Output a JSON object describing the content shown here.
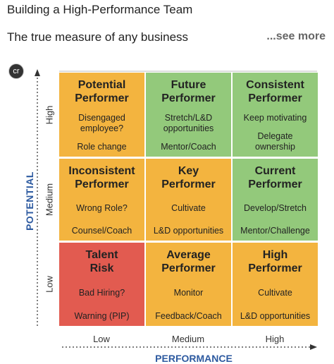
{
  "header": {
    "title": "Building a High-Performance Team",
    "subtitle": "The true measure of any business",
    "more": "...see more"
  },
  "badge": "cr",
  "axis": {
    "y_label": "POTENTIAL",
    "y_levels": [
      "High",
      "Medium",
      "Low"
    ],
    "x_label": "PERFORMANCE",
    "x_levels": [
      "Low",
      "Medium",
      "High"
    ]
  },
  "grid": {
    "rows": [
      {
        "cells": [
          {
            "color": "#f3b43f",
            "title": [
              "Potential",
              "Performer"
            ],
            "notes": [
              [
                "Disengaged",
                "employee?"
              ],
              [
                "Role change"
              ]
            ]
          },
          {
            "color": "#93c97b",
            "title": [
              "Future",
              "Performer"
            ],
            "notes": [
              [
                "Stretch/L&D",
                "opportunities"
              ],
              [
                "Mentor/Coach"
              ]
            ]
          },
          {
            "color": "#93c97b",
            "title": [
              "Consistent",
              "Performer"
            ],
            "notes": [
              [
                "Keep motivating"
              ],
              [
                "Delegate",
                "ownership"
              ]
            ]
          }
        ]
      },
      {
        "cells": [
          {
            "color": "#f3b43f",
            "title": [
              "Inconsistent",
              "Performer"
            ],
            "notes": [
              [
                "Wrong Role?"
              ],
              [
                "Counsel/Coach"
              ]
            ]
          },
          {
            "color": "#f3b43f",
            "title": [
              "Key",
              "Performer"
            ],
            "notes": [
              [
                "Cultivate"
              ],
              [
                "L&D opportunities"
              ]
            ]
          },
          {
            "color": "#93c97b",
            "title": [
              "Current",
              "Performer"
            ],
            "notes": [
              [
                "Develop/Stretch"
              ],
              [
                "Mentor/Challenge"
              ]
            ]
          }
        ]
      },
      {
        "cells": [
          {
            "color": "#e25b50",
            "title": [
              "Talent",
              "Risk"
            ],
            "notes": [
              [
                "Bad Hiring?"
              ],
              [
                "Warning (PIP)"
              ]
            ]
          },
          {
            "color": "#f3b43f",
            "title": [
              "Average",
              "Performer"
            ],
            "notes": [
              [
                "Monitor"
              ],
              [
                "Feedback/Coach"
              ]
            ]
          },
          {
            "color": "#f3b43f",
            "title": [
              "High",
              "Performer"
            ],
            "notes": [
              [
                "Cultivate"
              ],
              [
                "L&D opportunities"
              ]
            ]
          }
        ]
      }
    ]
  }
}
